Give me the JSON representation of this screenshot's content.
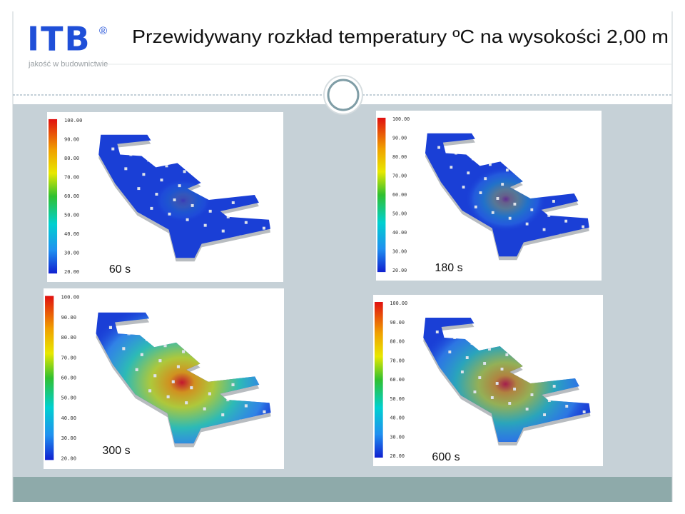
{
  "header": {
    "logo": "ITB",
    "registered": "®",
    "tagline": "jakość w budownictwie",
    "title": "Przewidywany rozkład temperatury ºC na wysokości 2,00 m"
  },
  "scale_labels": [
    "100.00",
    "90.00",
    "80.00",
    "70.00",
    "60.00",
    "50.00",
    "40.00",
    "30.00",
    "20.00"
  ],
  "panels": [
    {
      "label": "60 s"
    },
    {
      "label": "180 s"
    },
    {
      "label": "300 s"
    },
    {
      "label": "600 s"
    }
  ]
}
